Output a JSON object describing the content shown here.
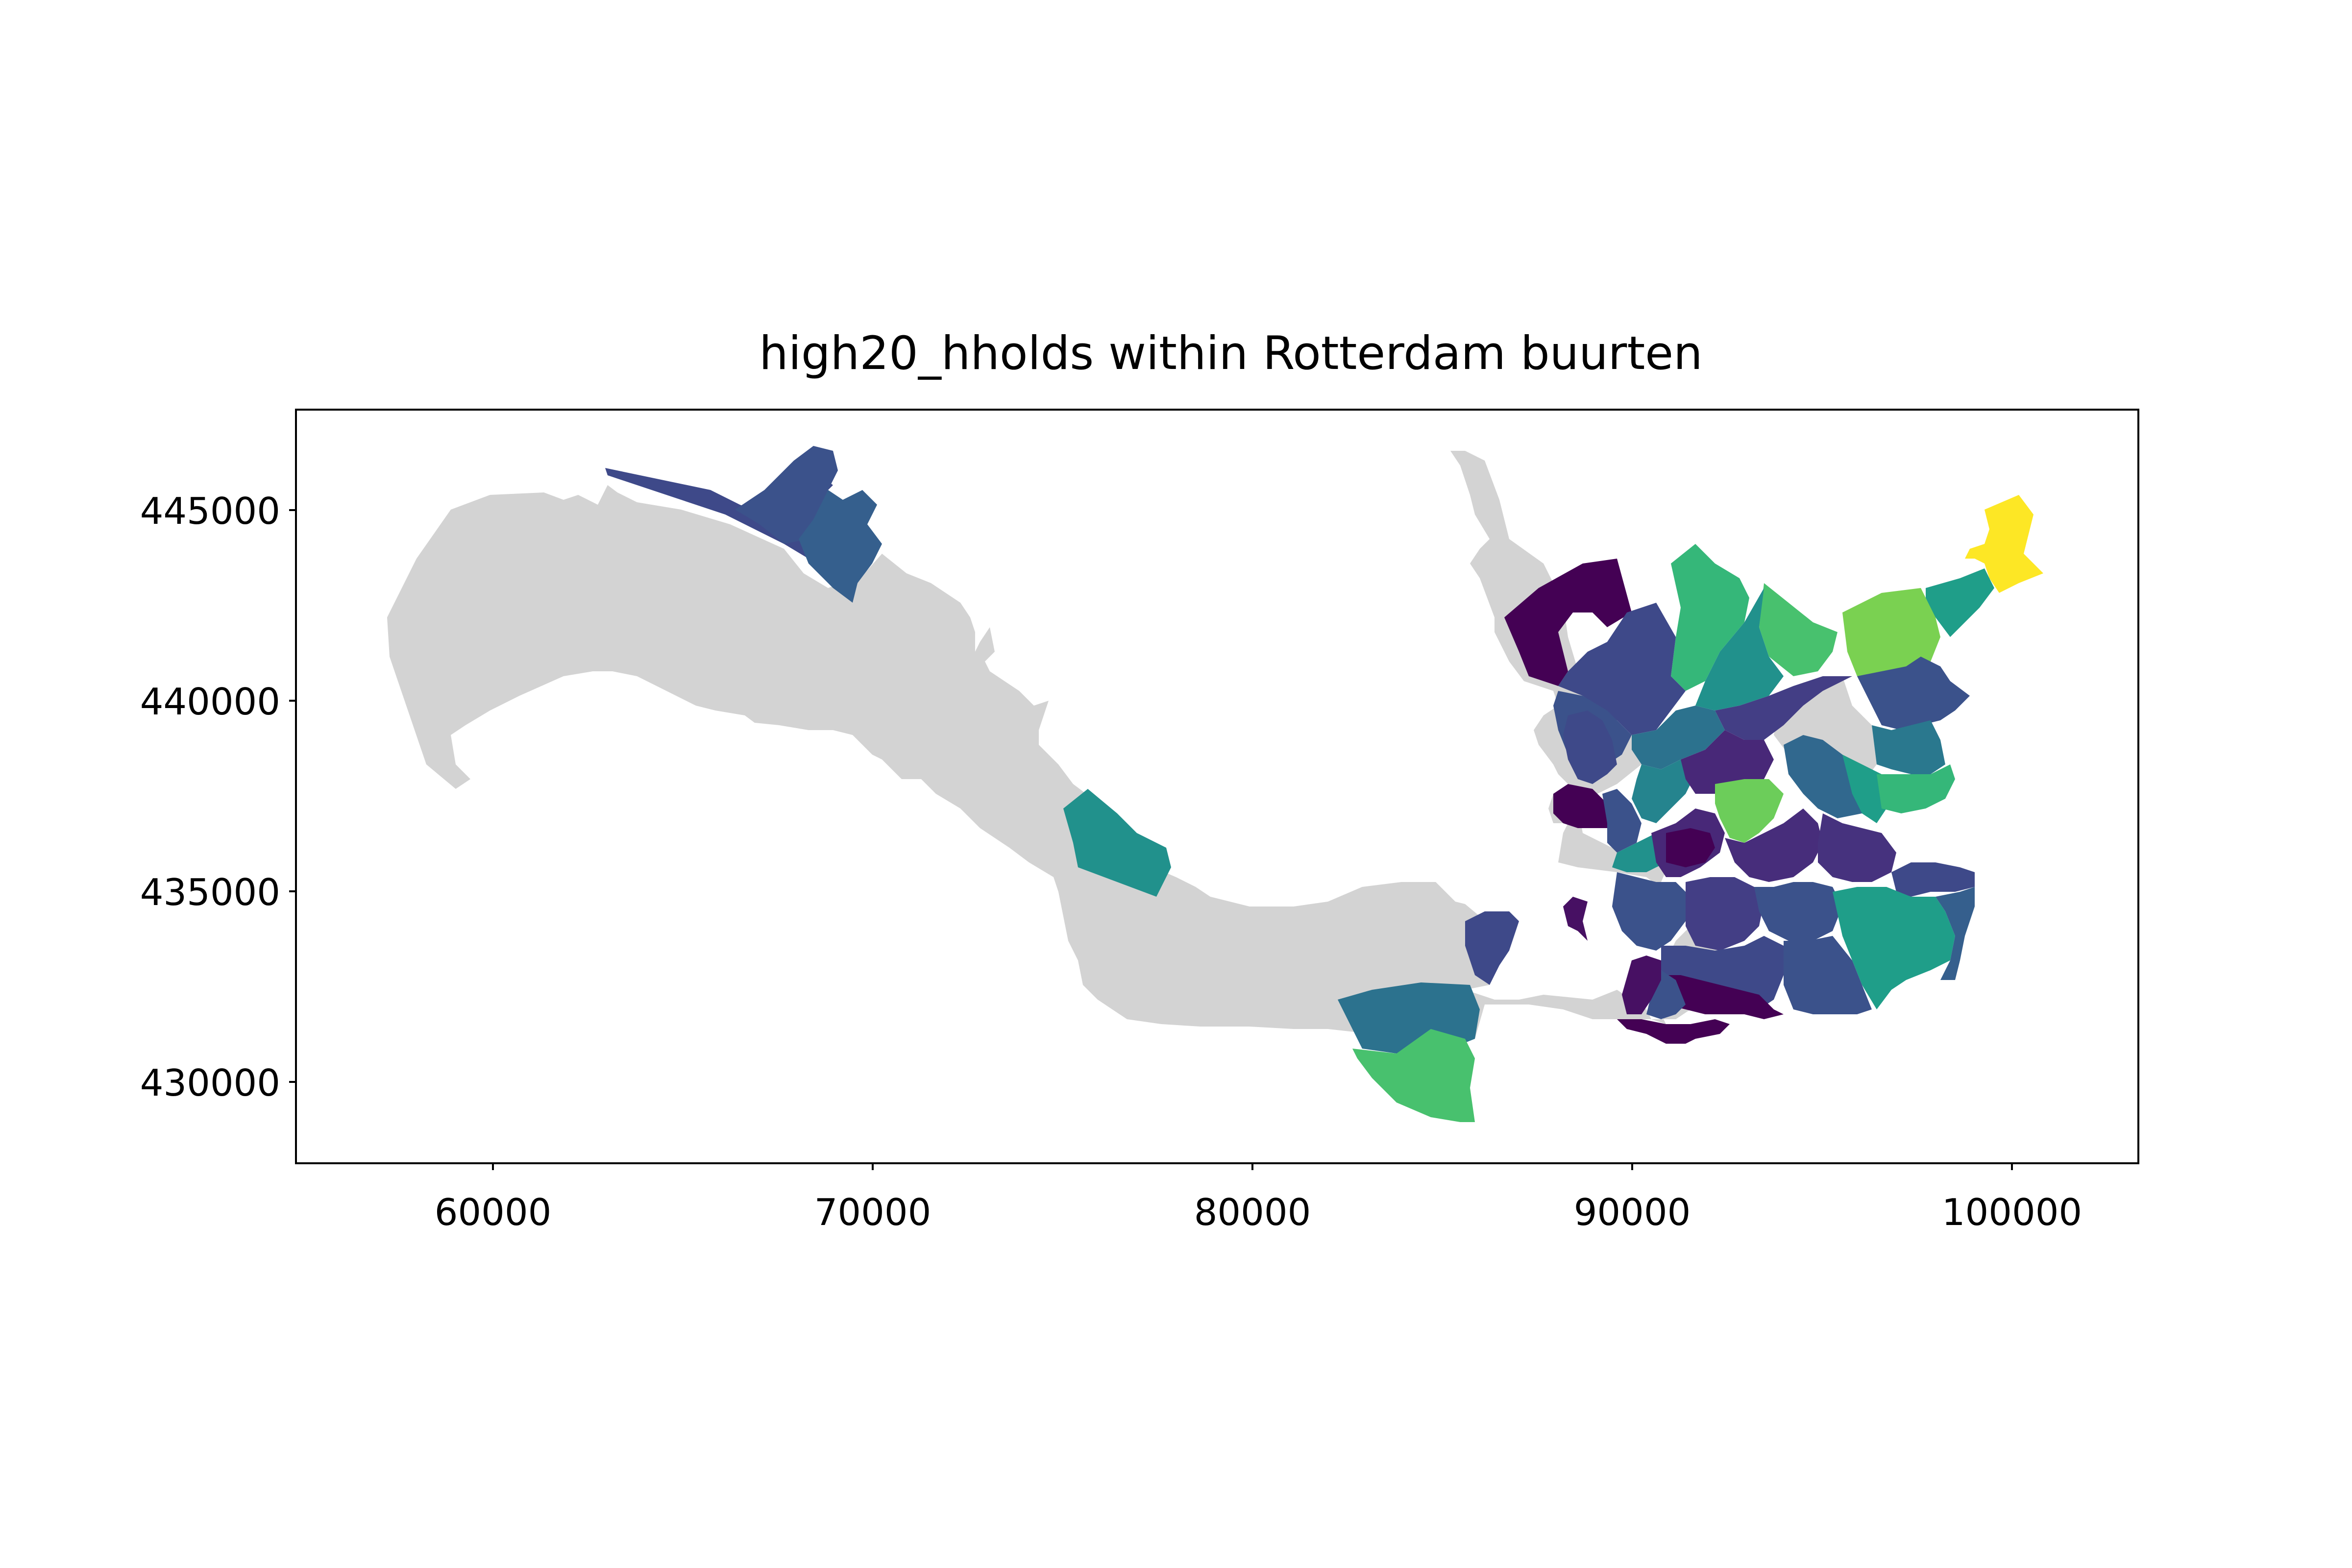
{
  "chart_data": {
    "type": "choropleth-map",
    "title": "high20_hholds within Rotterdam buurten",
    "xlabel": "",
    "ylabel": "",
    "x_ticks": [
      60000,
      70000,
      80000,
      90000,
      100000
    ],
    "x_tick_labels": [
      "60000",
      "70000",
      "80000",
      "90000",
      "100000"
    ],
    "y_ticks": [
      430000,
      435000,
      440000,
      445000
    ],
    "y_tick_labels": [
      "430000",
      "435000",
      "440000",
      "445000"
    ],
    "xlim": [
      54800,
      103300
    ],
    "ylim": [
      427800,
      447600
    ],
    "colormap": "viridis",
    "missing_color": "#d3d3d3",
    "colors": {
      "viridis_low": "#440154",
      "viridis_mid": "#21918c",
      "viridis_high": "#fde725",
      "frame": "#000000",
      "background": "#ffffff"
    }
  }
}
